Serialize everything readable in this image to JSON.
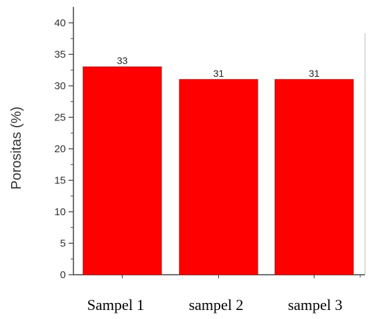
{
  "chart_data": {
    "type": "bar",
    "categories": [
      "Sampel 1",
      "sampel 2",
      "sampel 3"
    ],
    "values": [
      33,
      31,
      31
    ],
    "data_labels": [
      "33",
      "31",
      "31"
    ],
    "title": "",
    "xlabel": "",
    "ylabel": "Porositas (%)",
    "ylim": [
      0,
      42
    ],
    "yticks": [
      0,
      5,
      10,
      15,
      20,
      25,
      30,
      35,
      40
    ],
    "grid": false,
    "bar_color": "#ff0000",
    "bar_edge_color": "#b00000"
  }
}
